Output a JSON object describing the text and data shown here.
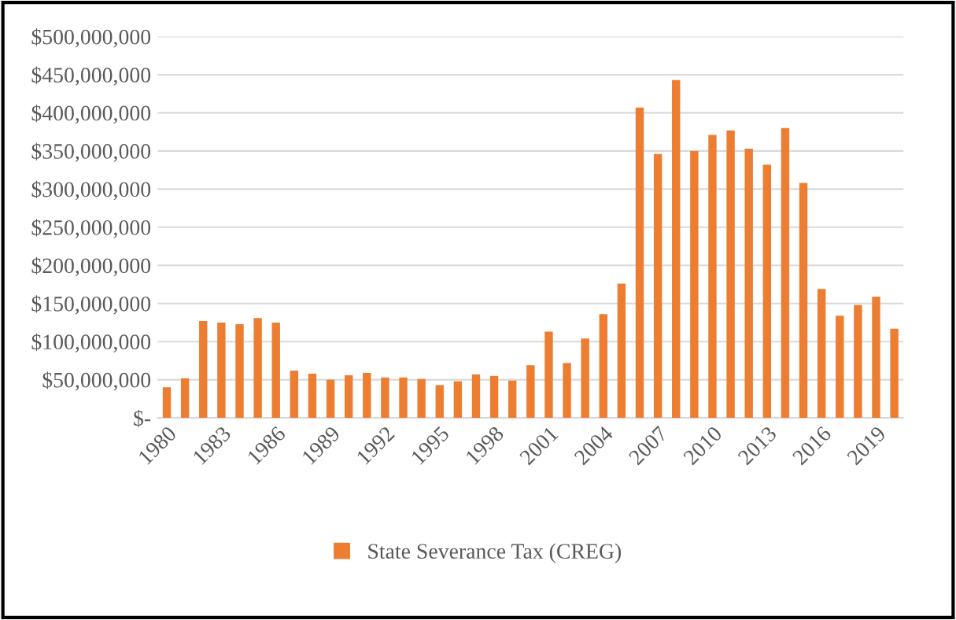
{
  "chart_data": {
    "type": "bar",
    "categories": [
      "1980",
      null,
      null,
      "1983",
      null,
      null,
      "1986",
      null,
      null,
      "1989",
      null,
      null,
      "1992",
      null,
      null,
      "1995",
      null,
      null,
      "1998",
      null,
      null,
      "2001",
      null,
      null,
      "2004",
      null,
      null,
      "2007",
      null,
      null,
      "2010",
      null,
      null,
      "2013",
      null,
      null,
      "2016",
      null,
      null,
      "2019",
      null
    ],
    "series": [
      {
        "name": "State Severance Tax (CREG)",
        "color": "#ed7d31",
        "values": [
          40000000,
          52000000,
          127000000,
          125000000,
          123000000,
          131000000,
          125000000,
          62000000,
          58000000,
          50000000,
          56000000,
          59000000,
          53000000,
          53000000,
          51000000,
          43000000,
          48000000,
          57000000,
          55000000,
          49000000,
          69000000,
          113000000,
          72000000,
          104000000,
          136000000,
          176000000,
          407000000,
          346000000,
          443000000,
          350000000,
          371000000,
          377000000,
          353000000,
          332000000,
          380000000,
          308000000,
          169000000,
          134000000,
          148000000,
          159000000,
          117000000
        ]
      }
    ],
    "ylim": [
      0,
      500000000
    ],
    "yticks": [
      {
        "value": 0,
        "label": "$-"
      },
      {
        "value": 50000000,
        "label": "$50,000,000"
      },
      {
        "value": 100000000,
        "label": "$100,000,000"
      },
      {
        "value": 150000000,
        "label": "$150,000,000"
      },
      {
        "value": 200000000,
        "label": "$200,000,000"
      },
      {
        "value": 250000000,
        "label": "$250,000,000"
      },
      {
        "value": 300000000,
        "label": "$300,000,000"
      },
      {
        "value": 350000000,
        "label": "$350,000,000"
      },
      {
        "value": 400000000,
        "label": "$400,000,000"
      },
      {
        "value": 450000000,
        "label": "$450,000,000"
      },
      {
        "value": 500000000,
        "label": "$500,000,000"
      }
    ],
    "grid": "y",
    "legend": "bottom"
  }
}
